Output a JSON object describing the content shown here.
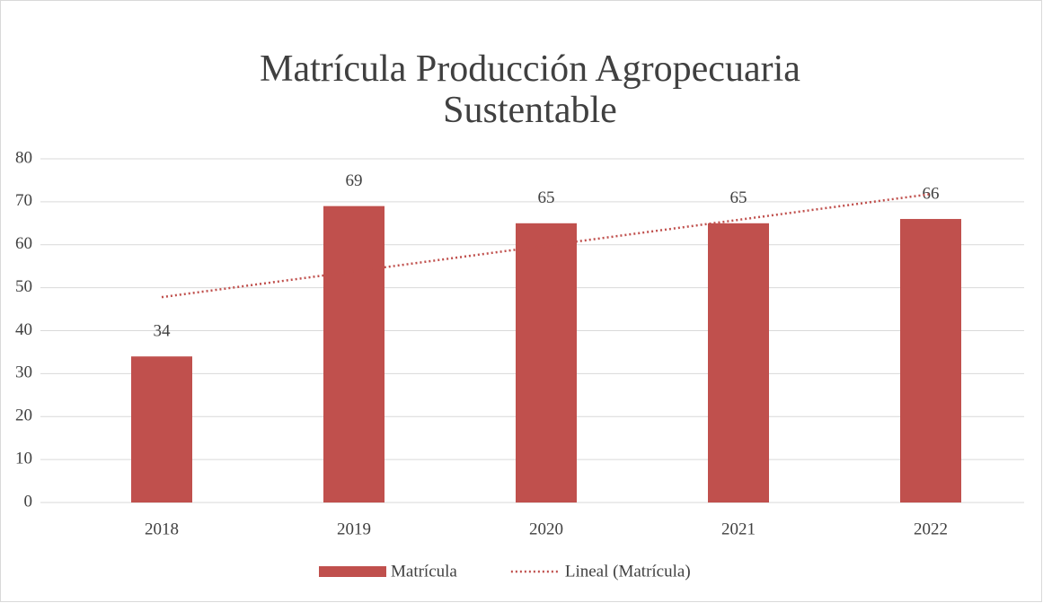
{
  "chart_data": {
    "type": "bar",
    "title": "Matrícula Producción Agropecuaria Sustentable",
    "categories": [
      "2018",
      "2019",
      "2020",
      "2021",
      "2022"
    ],
    "series": [
      {
        "name": "Matrícula",
        "type": "bar",
        "color": "#c0504d",
        "values": [
          34,
          69,
          65,
          65,
          66
        ]
      },
      {
        "name": "Lineal (Matrícula)",
        "type": "line",
        "color": "#c0504d",
        "values": [
          47.8,
          53.8,
          59.8,
          65.8,
          71.8
        ]
      }
    ],
    "ylim": [
      0,
      80
    ],
    "yticks": [
      0,
      10,
      20,
      30,
      40,
      50,
      60,
      70,
      80
    ],
    "grid": true,
    "legend": "bottom"
  }
}
